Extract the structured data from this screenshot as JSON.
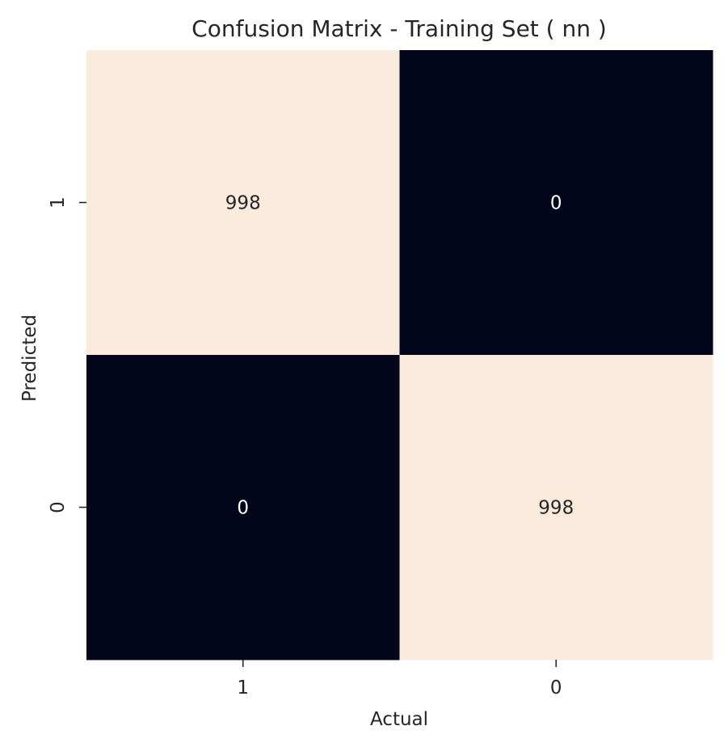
{
  "chart_data": {
    "type": "heatmap",
    "title": "Confusion Matrix - Training Set ( nn )",
    "xlabel": "Actual",
    "ylabel": "Predicted",
    "x_categories": [
      "1",
      "0"
    ],
    "y_categories": [
      "1",
      "0"
    ],
    "matrix": [
      [
        998,
        0
      ],
      [
        0,
        998
      ]
    ],
    "colorbar": false,
    "grid": false,
    "colors": {
      "high": "#faebdd",
      "low": "#03051a",
      "text_on_high": "#262626",
      "text_on_low": "#ffffff"
    }
  }
}
